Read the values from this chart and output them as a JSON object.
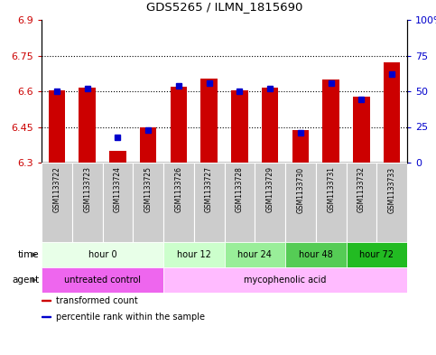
{
  "title": "GDS5265 / ILMN_1815690",
  "samples": [
    "GSM1133722",
    "GSM1133723",
    "GSM1133724",
    "GSM1133725",
    "GSM1133726",
    "GSM1133727",
    "GSM1133728",
    "GSM1133729",
    "GSM1133730",
    "GSM1133731",
    "GSM1133732",
    "GSM1133733"
  ],
  "transformed_counts": [
    6.602,
    6.617,
    6.348,
    6.448,
    6.618,
    6.655,
    6.605,
    6.617,
    6.438,
    6.65,
    6.578,
    6.72
  ],
  "percentile_ranks": [
    50,
    52,
    18,
    23,
    54,
    56,
    50,
    52,
    21,
    56,
    44,
    62
  ],
  "ylim_left": [
    6.3,
    6.9
  ],
  "ylim_right": [
    0,
    100
  ],
  "yticks_left": [
    6.3,
    6.45,
    6.6,
    6.75,
    6.9
  ],
  "yticks_right": [
    0,
    25,
    50,
    75,
    100
  ],
  "ytick_labels_left": [
    "6.3",
    "6.45",
    "6.6",
    "6.75",
    "6.9"
  ],
  "ytick_labels_right": [
    "0",
    "25",
    "50",
    "75",
    "100%"
  ],
  "hlines": [
    6.45,
    6.6,
    6.75
  ],
  "bar_bottom": 6.3,
  "red_color": "#cc0000",
  "blue_color": "#0000cc",
  "time_groups": [
    {
      "label": "hour 0",
      "start": 0,
      "end": 3,
      "color": "#e8ffe8"
    },
    {
      "label": "hour 12",
      "start": 4,
      "end": 5,
      "color": "#ccffcc"
    },
    {
      "label": "hour 24",
      "start": 6,
      "end": 7,
      "color": "#99ee99"
    },
    {
      "label": "hour 48",
      "start": 8,
      "end": 9,
      "color": "#55cc55"
    },
    {
      "label": "hour 72",
      "start": 10,
      "end": 11,
      "color": "#22bb22"
    }
  ],
  "agent_groups": [
    {
      "label": "untreated control",
      "start": 0,
      "end": 3,
      "color": "#ee66ee"
    },
    {
      "label": "mycophenolic acid",
      "start": 4,
      "end": 11,
      "color": "#ffbbff"
    }
  ],
  "legend_items": [
    {
      "label": "transformed count",
      "color": "#cc0000",
      "marker": "s"
    },
    {
      "label": "percentile rank within the sample",
      "color": "#0000cc",
      "marker": "s"
    }
  ],
  "bar_width": 0.55,
  "xlabels_bg": "#cccccc",
  "spine_color": "#000000",
  "fig_bg": "#ffffff"
}
